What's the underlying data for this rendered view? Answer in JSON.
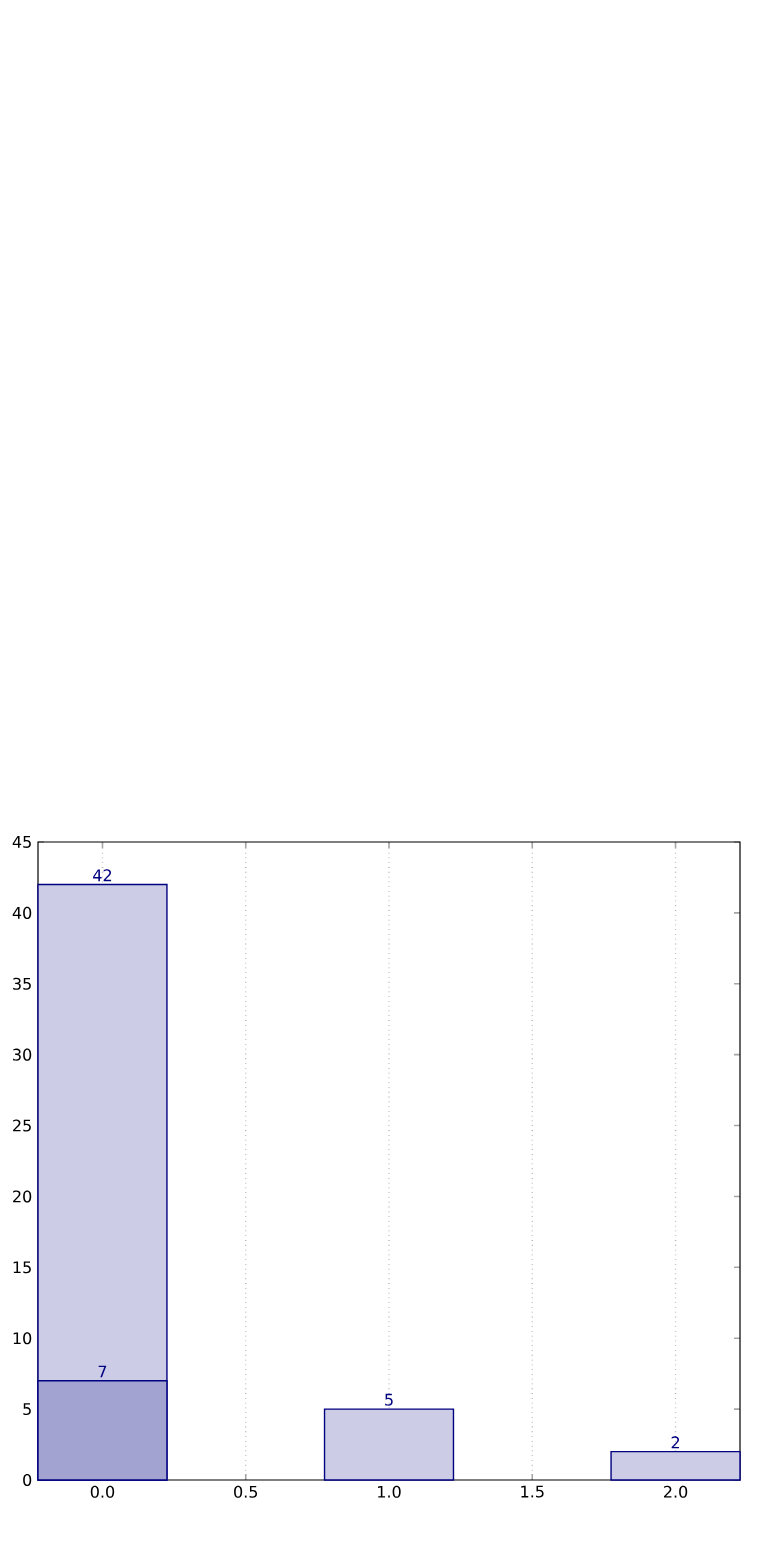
{
  "chart_data": {
    "type": "bar",
    "x": [
      0,
      1,
      2
    ],
    "series": [
      {
        "color": "#cccce6",
        "values": [
          42,
          5,
          2
        ]
      },
      {
        "color": "#a3a3d1",
        "values": [
          7,
          null,
          null
        ]
      }
    ],
    "xlim": [
      -0.225,
      2.225
    ],
    "ylim": [
      0,
      45
    ],
    "xticks": [
      {
        "value": 0,
        "label": "0.0"
      },
      {
        "value": 0.5,
        "label": "0.5"
      },
      {
        "value": 1,
        "label": "1.0"
      },
      {
        "value": 1.5,
        "label": "1.5"
      },
      {
        "value": 2,
        "label": "2.0"
      }
    ],
    "yticks": [
      0,
      5,
      10,
      15,
      20,
      25,
      30,
      35,
      40,
      45
    ],
    "grid": "x",
    "data_labels": true
  }
}
